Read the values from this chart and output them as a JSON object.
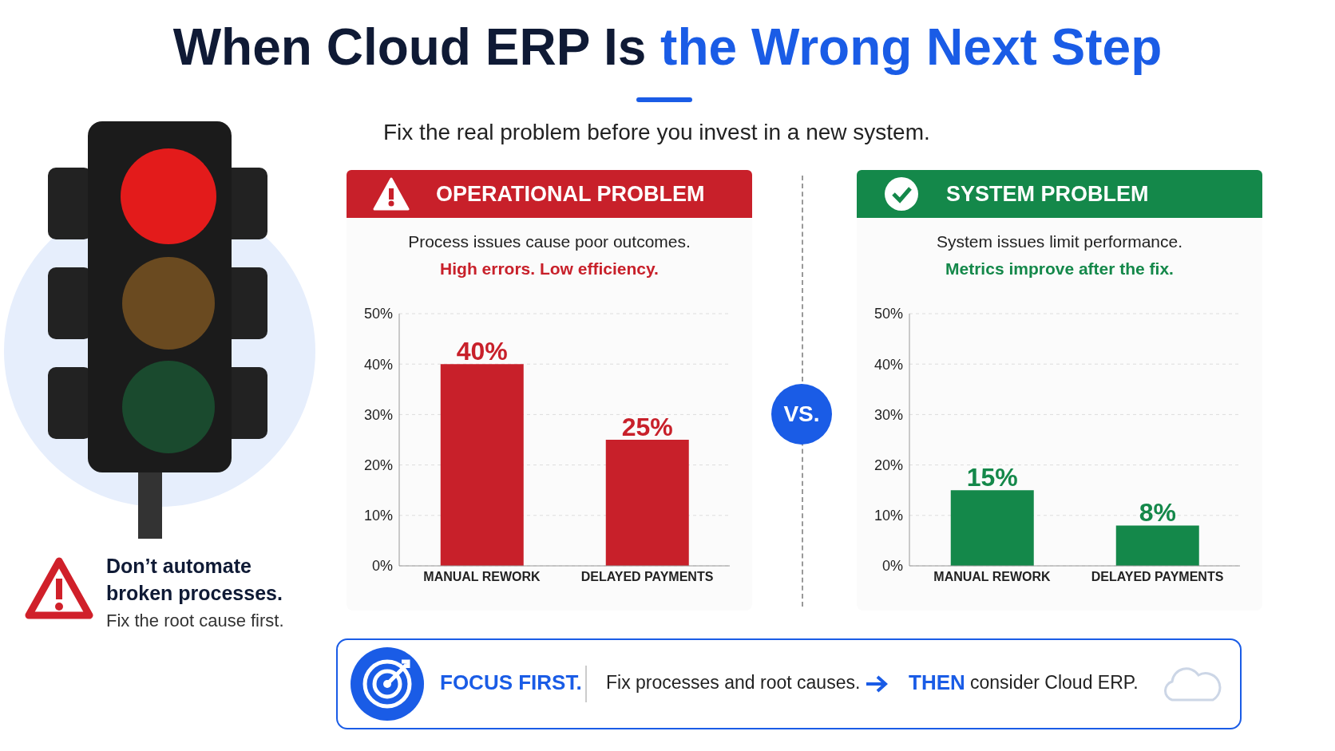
{
  "chart_data": [
    {
      "type": "other",
      "title": "When Cloud ERP Is the Wrong Next Step",
      "subtitle": "Fix the real problem before you invest in a new system.",
      "annotations": [
        "Don’t automate broken processes.",
        "Fix the root cause first.",
        "VS.",
        "FOCUS FIRST.",
        "Fix processes and root causes.",
        "THEN",
        "consider Cloud ERP."
      ]
    },
    {
      "type": "bar",
      "title": "OPERATIONAL PROBLEM",
      "subtitle": "Process issues cause poor outcomes.",
      "annotations": [
        "High errors. Low efficiency."
      ],
      "categories": [
        "MANUAL REWORK",
        "DELAYED PAYMENTS"
      ],
      "values": [
        40,
        25
      ],
      "value_labels": [
        "40%",
        "25%"
      ],
      "color": "#c8202a",
      "ylim": [
        0,
        50
      ],
      "yticks": [
        {
          "value": 0,
          "label": "0%"
        },
        {
          "value": 10,
          "label": "10%"
        },
        {
          "value": 20,
          "label": "20%"
        },
        {
          "value": 30,
          "label": "30%"
        },
        {
          "value": 40,
          "label": "40%"
        },
        {
          "value": 50,
          "label": "50%"
        }
      ],
      "grid": "y"
    },
    {
      "type": "bar",
      "title": "SYSTEM PROBLEM",
      "subtitle": "System issues limit performance.",
      "annotations": [
        "Metrics improve after the fix."
      ],
      "categories": [
        "MANUAL REWORK",
        "DELAYED PAYMENTS"
      ],
      "values": [
        15,
        8
      ],
      "value_labels": [
        "15%",
        "8%"
      ],
      "color": "#14884a",
      "ylim": [
        0,
        50
      ],
      "yticks": [
        {
          "value": 0,
          "label": "0%"
        },
        {
          "value": 10,
          "label": "10%"
        },
        {
          "value": 20,
          "label": "20%"
        },
        {
          "value": 30,
          "label": "30%"
        },
        {
          "value": 40,
          "label": "40%"
        },
        {
          "value": 50,
          "label": "50%"
        }
      ],
      "grid": "y"
    }
  ]
}
